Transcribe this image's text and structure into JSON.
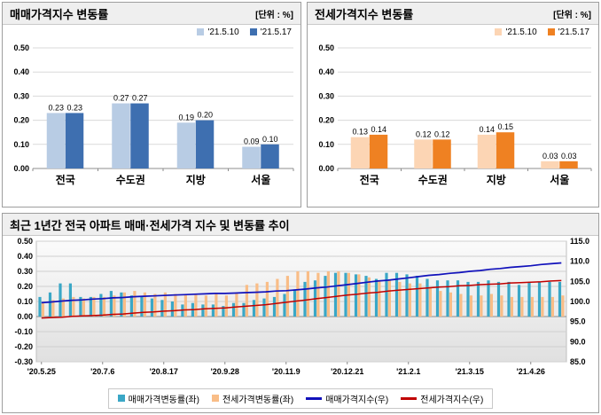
{
  "chart_data": [
    {
      "type": "bar",
      "title": "매매가격지수 변동률",
      "unit": "[단위 : %]",
      "categories": [
        "전국",
        "수도권",
        "지방",
        "서울"
      ],
      "series": [
        {
          "name": "'21.5.10",
          "color": "#b8cce4",
          "values": [
            0.23,
            0.27,
            0.19,
            0.09
          ]
        },
        {
          "name": "'21.5.17",
          "color": "#3e6fb0",
          "values": [
            0.23,
            0.27,
            0.2,
            0.1
          ]
        }
      ],
      "ylim": [
        0,
        0.5
      ],
      "ytick_step": 0.1,
      "grid": true,
      "legend_position": "top-right"
    },
    {
      "type": "bar",
      "title": "전세가격지수 변동률",
      "unit": "[단위 : %]",
      "categories": [
        "전국",
        "수도권",
        "지방",
        "서울"
      ],
      "series": [
        {
          "name": "'21.5.10",
          "color": "#fcd5b4",
          "values": [
            0.13,
            0.12,
            0.14,
            0.03
          ]
        },
        {
          "name": "'21.5.17",
          "color": "#ef8122",
          "values": [
            0.14,
            0.12,
            0.15,
            0.03
          ]
        }
      ],
      "ylim": [
        0,
        0.5
      ],
      "ytick_step": 0.1,
      "grid": true,
      "legend_position": "top-right"
    },
    {
      "type": "combo",
      "title": "최근 1년간 전국 아파트 매매·전세가격 지수 및 변동률 추이",
      "x_tick_labels": [
        "'20.5.25",
        "'20.7.6",
        "'20.8.17",
        "'20.9.28",
        "'20.11.9",
        "'20.12.21",
        "'21.2.1",
        "'21.3.15",
        "'21.4.26"
      ],
      "x_tick_indices": [
        0,
        6,
        12,
        18,
        24,
        30,
        36,
        42,
        48
      ],
      "left_ylim": [
        -0.3,
        0.5
      ],
      "left_ytick_step": 0.1,
      "right_ylim": [
        85.0,
        115.0
      ],
      "right_ytick_step": 5.0,
      "grid": true,
      "legend_position": "bottom",
      "bar_series": [
        {
          "name": "매매가격변동률(좌)",
          "axis": "left",
          "color": "#3aa7c6",
          "values": [
            0.13,
            0.16,
            0.22,
            0.22,
            0.13,
            0.13,
            0.15,
            0.17,
            0.16,
            0.14,
            0.13,
            0.12,
            0.11,
            0.1,
            0.08,
            0.09,
            0.08,
            0.08,
            0.07,
            0.09,
            0.09,
            0.11,
            0.12,
            0.13,
            0.15,
            0.18,
            0.23,
            0.24,
            0.27,
            0.29,
            0.29,
            0.28,
            0.27,
            0.25,
            0.29,
            0.29,
            0.28,
            0.27,
            0.25,
            0.24,
            0.24,
            0.24,
            0.23,
            0.23,
            0.24,
            0.23,
            0.23,
            0.21,
            0.23,
            0.23,
            0.23,
            0.23
          ]
        },
        {
          "name": "전세가격변동률(좌)",
          "axis": "left",
          "color": "#f9bd87",
          "values": [
            0.09,
            0.11,
            0.12,
            0.13,
            0.12,
            0.13,
            0.13,
            0.14,
            0.16,
            0.17,
            0.16,
            0.15,
            0.16,
            0.15,
            0.15,
            0.15,
            0.14,
            0.15,
            0.14,
            0.16,
            0.21,
            0.22,
            0.23,
            0.25,
            0.27,
            0.3,
            0.3,
            0.29,
            0.3,
            0.3,
            0.29,
            0.28,
            0.26,
            0.24,
            0.24,
            0.23,
            0.22,
            0.22,
            0.19,
            0.17,
            0.16,
            0.15,
            0.14,
            0.14,
            0.15,
            0.14,
            0.13,
            0.13,
            0.13,
            0.13,
            0.13,
            0.14
          ]
        }
      ],
      "line_series": [
        {
          "name": "매매가격지수(우)",
          "axis": "right",
          "color": "#1111bb",
          "values": [
            99.7,
            99.9,
            100.1,
            100.3,
            100.4,
            100.6,
            100.7,
            100.9,
            101.0,
            101.2,
            101.3,
            101.4,
            101.5,
            101.6,
            101.7,
            101.8,
            101.9,
            102.0,
            102.0,
            102.1,
            102.2,
            102.3,
            102.4,
            102.6,
            102.7,
            102.9,
            103.1,
            103.4,
            103.6,
            103.9,
            104.2,
            104.5,
            104.8,
            105.1,
            105.3,
            105.6,
            105.9,
            106.2,
            106.5,
            106.7,
            107.0,
            107.2,
            107.5,
            107.7,
            108.0,
            108.2,
            108.5,
            108.7,
            108.9,
            109.2,
            109.4,
            109.6
          ]
        },
        {
          "name": "전세가격지수(우)",
          "axis": "right",
          "color": "#c00000",
          "values": [
            95.9,
            96.0,
            96.1,
            96.3,
            96.4,
            96.5,
            96.6,
            96.8,
            96.9,
            97.1,
            97.3,
            97.4,
            97.6,
            97.7,
            97.9,
            98.0,
            98.2,
            98.3,
            98.4,
            98.6,
            98.8,
            99.0,
            99.2,
            99.5,
            99.8,
            100.1,
            100.4,
            100.7,
            101.0,
            101.3,
            101.6,
            101.8,
            102.1,
            102.3,
            102.6,
            102.8,
            103.0,
            103.2,
            103.4,
            103.6,
            103.7,
            103.9,
            104.0,
            104.2,
            104.3,
            104.4,
            104.6,
            104.7,
            104.8,
            104.9,
            105.1,
            105.2
          ]
        }
      ]
    }
  ]
}
